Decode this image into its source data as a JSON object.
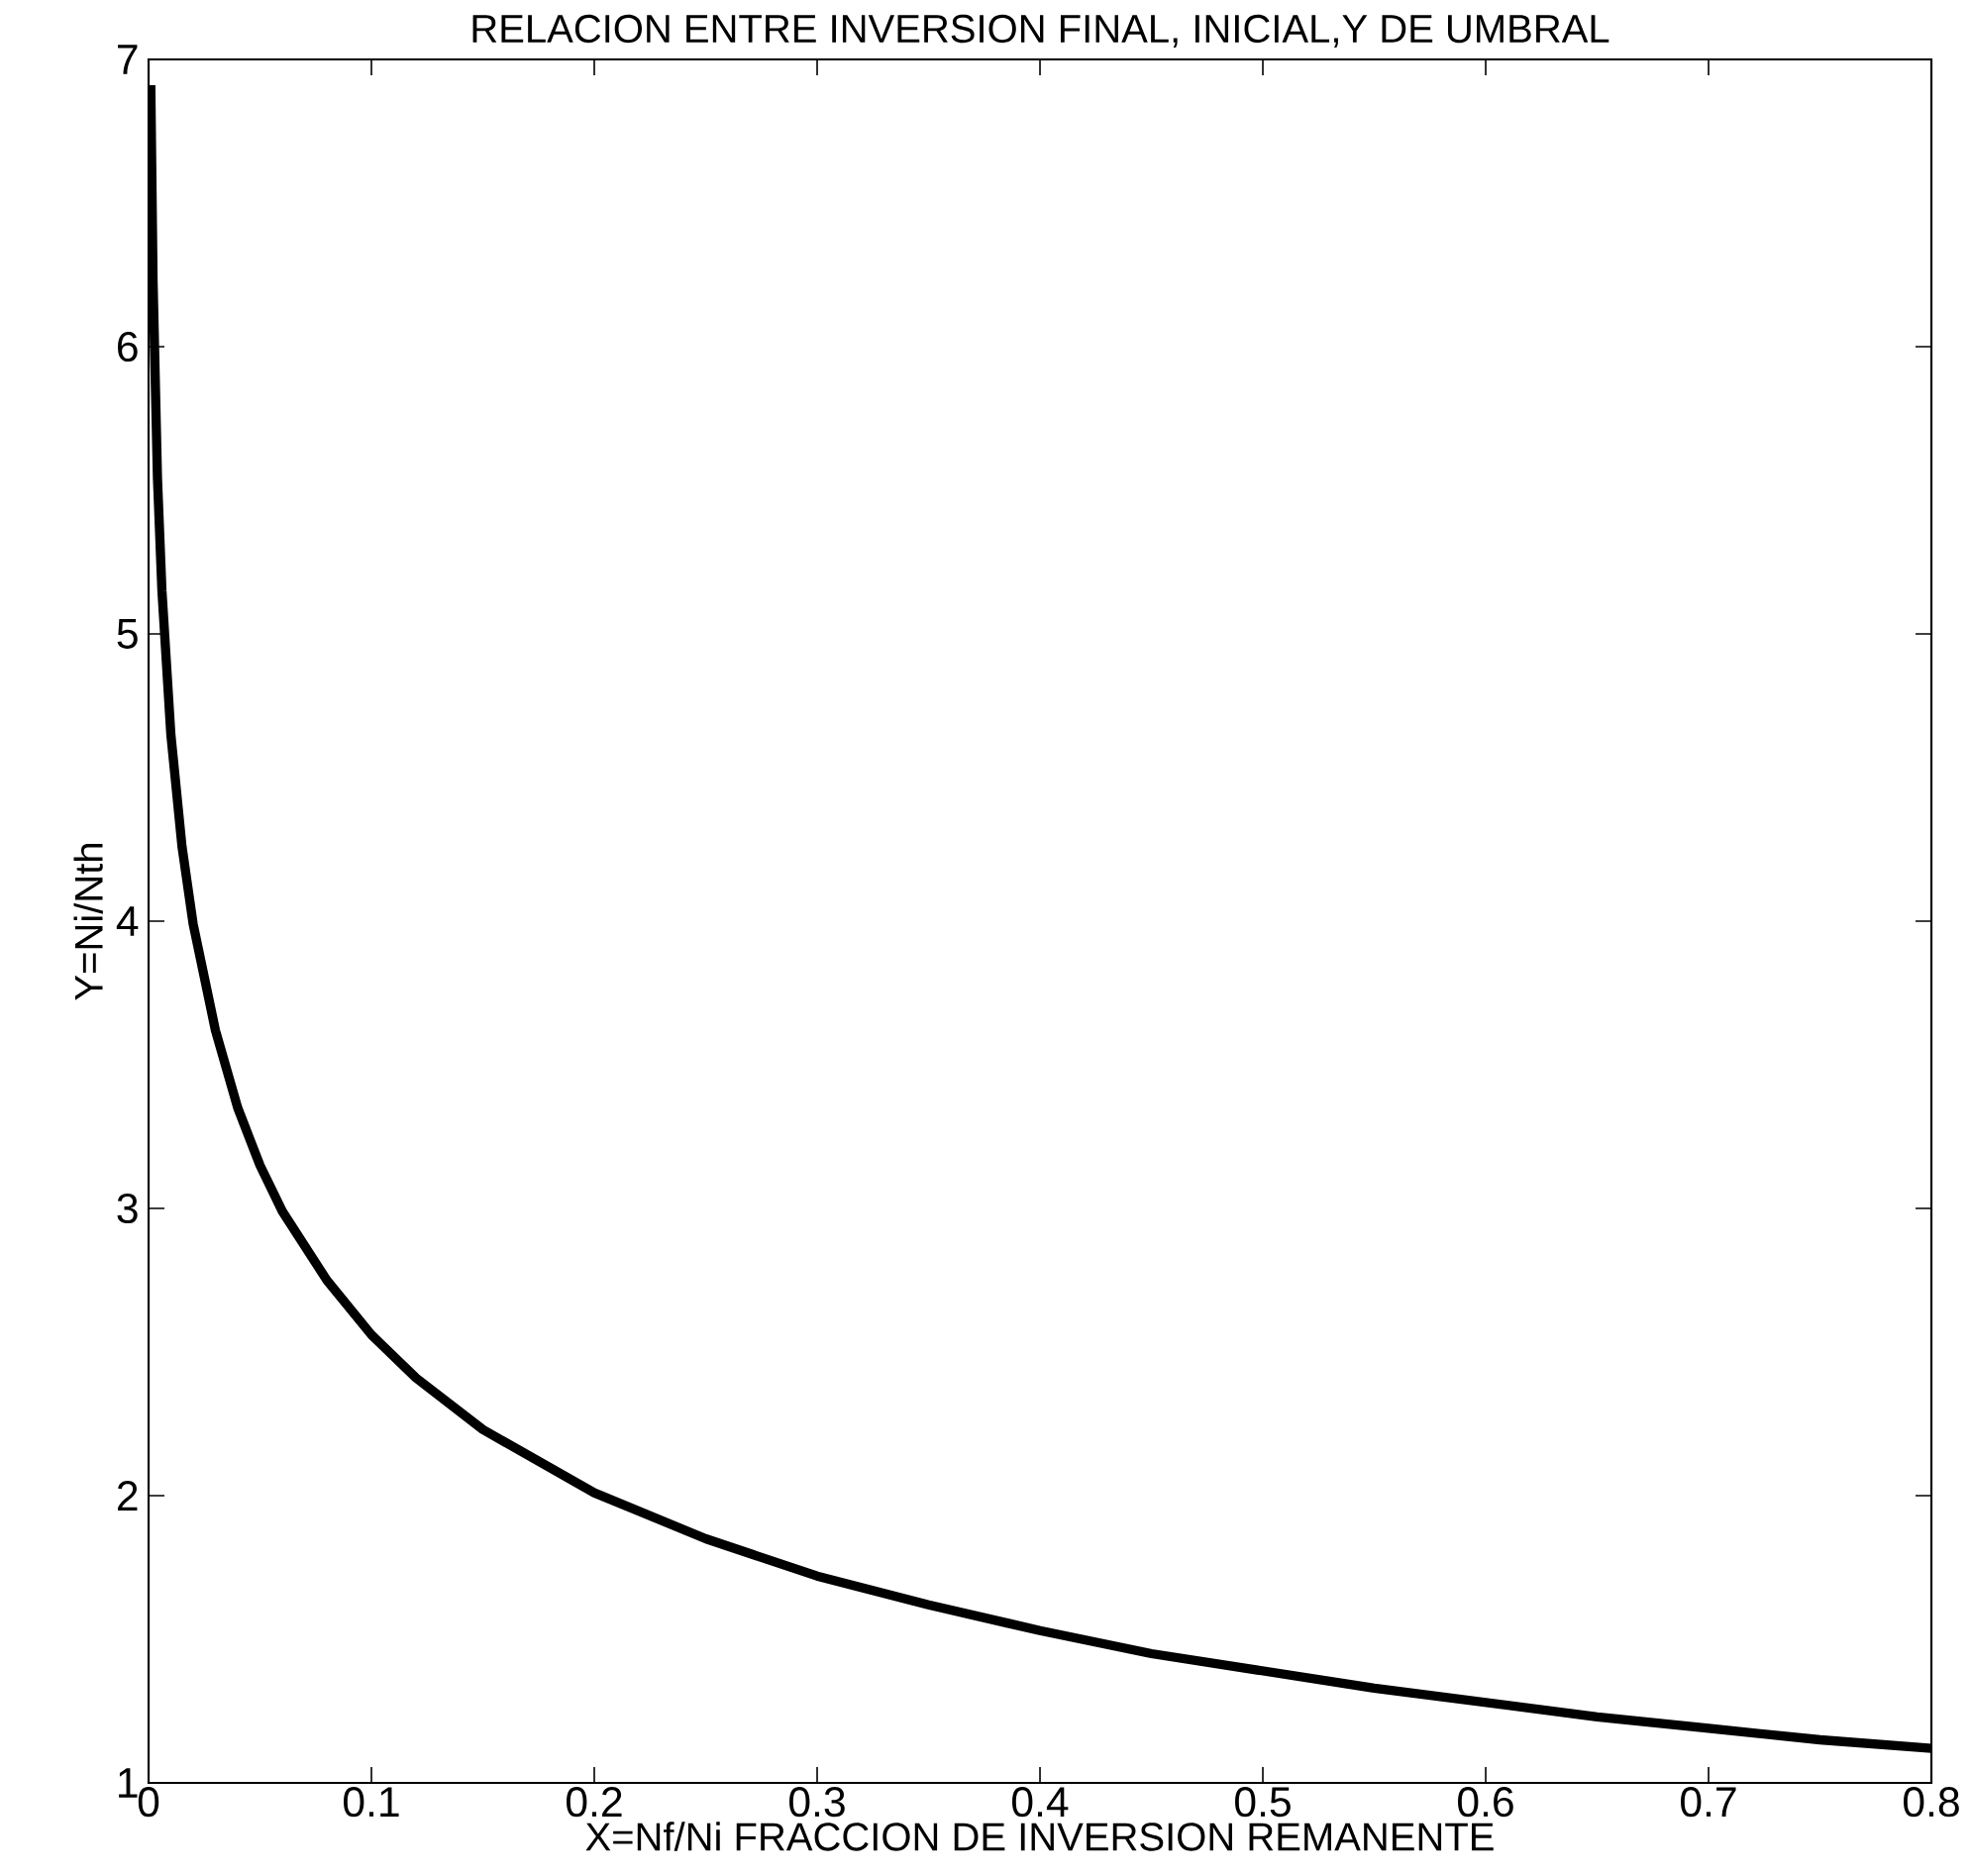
{
  "chart_data": {
    "type": "line",
    "title": "RELACION ENTRE INVERSION FINAL, INICIAL,Y DE UMBRAL",
    "xlabel": "X=Nf/Ni FRACCION DE INVERSION REMANENTE",
    "ylabel": "Y=Ni/Nth",
    "x": [
      0.001,
      0.002,
      0.004,
      0.006,
      0.01,
      0.015,
      0.02,
      0.03,
      0.04,
      0.05,
      0.06,
      0.08,
      0.1,
      0.12,
      0.15,
      0.2,
      0.25,
      0.3,
      0.35,
      0.4,
      0.45,
      0.5,
      0.55,
      0.6,
      0.65,
      0.7,
      0.75,
      0.8
    ],
    "series": [
      {
        "color": "#000000",
        "values": [
          6.91,
          6.23,
          5.54,
          5.15,
          4.65,
          4.26,
          3.99,
          3.62,
          3.35,
          3.15,
          2.99,
          2.75,
          2.56,
          2.41,
          2.23,
          2.01,
          1.85,
          1.72,
          1.62,
          1.53,
          1.45,
          1.39,
          1.33,
          1.28,
          1.23,
          1.19,
          1.15,
          1.12
        ]
      }
    ],
    "xlim": [
      0,
      0.8
    ],
    "ylim": [
      1,
      7
    ],
    "xticks": [
      0,
      0.1,
      0.2,
      0.3,
      0.4,
      0.5,
      0.6,
      0.7,
      0.8
    ],
    "yticks": [
      1,
      2,
      3,
      4,
      5,
      6,
      7
    ],
    "grid": false,
    "marker": "none",
    "line_style": "solid"
  }
}
